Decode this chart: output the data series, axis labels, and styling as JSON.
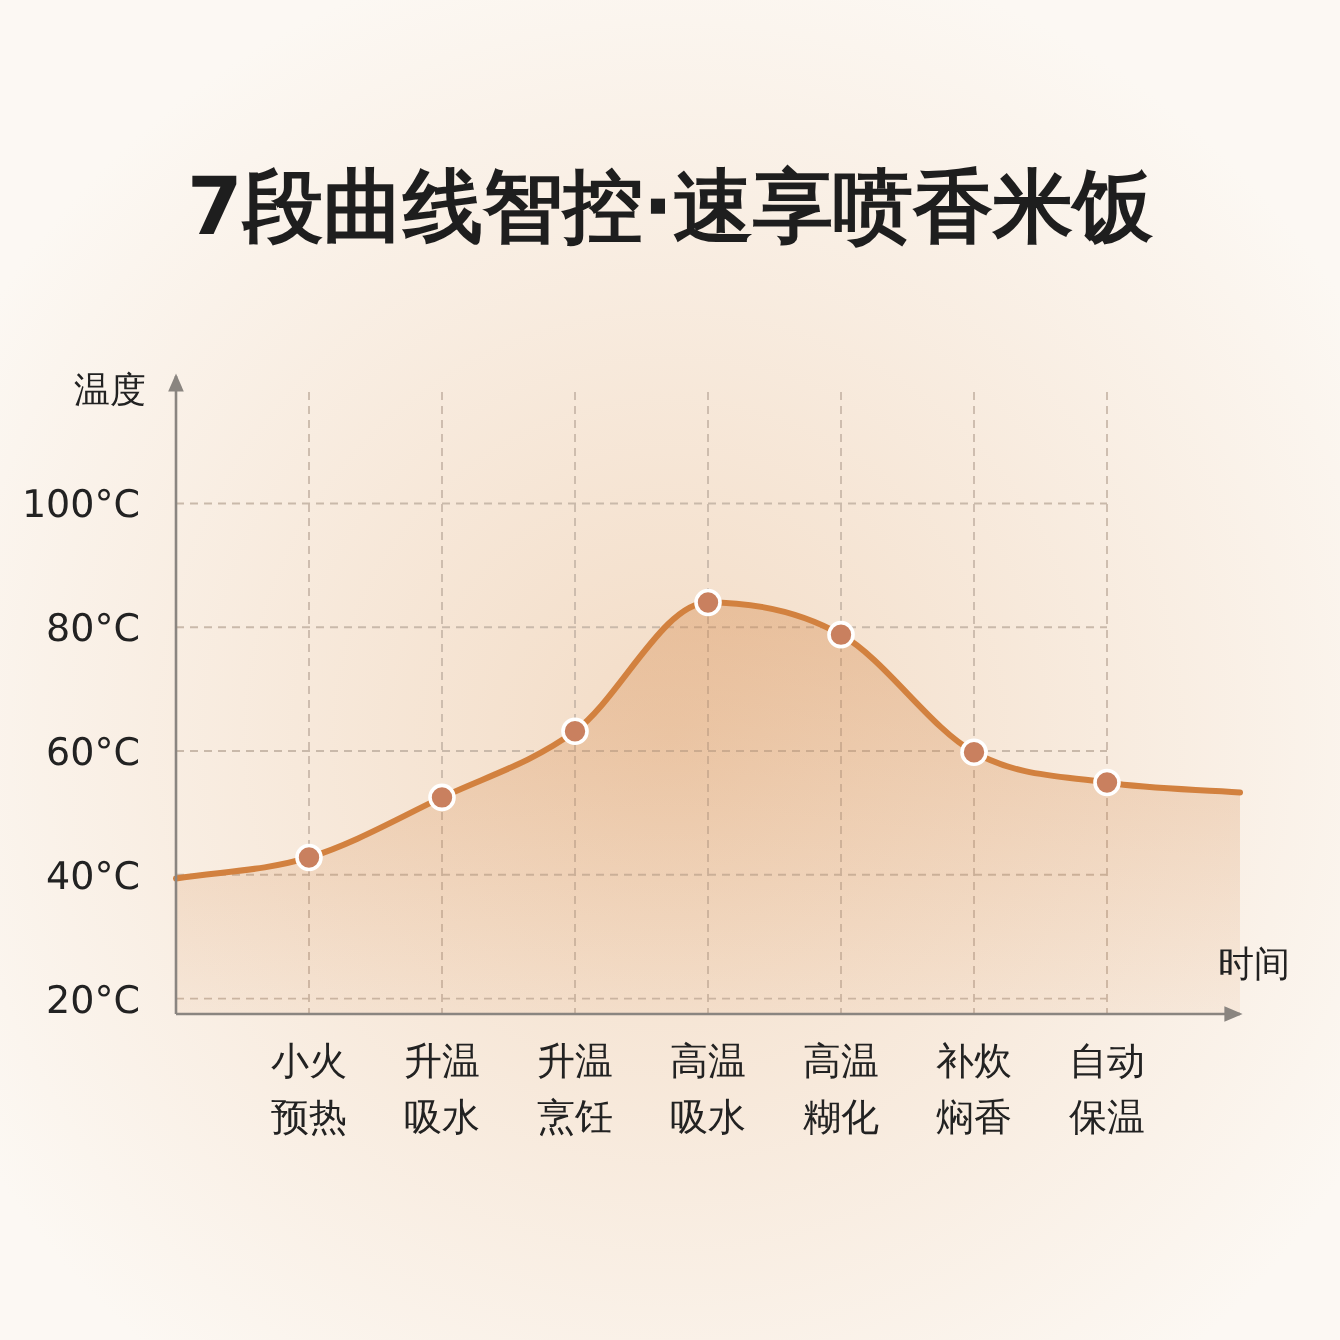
{
  "chart_data": {
    "type": "area",
    "title": "7段曲线智控·速享喷香米饭",
    "xlabel": "时间",
    "ylabel": "温度",
    "ylim": [
      17.5,
      120.6
    ],
    "categories": [
      null,
      "小火预热",
      "升温吸水",
      "升温烹饪",
      "高温吸水",
      "高温糊化",
      "补炊焖香",
      "自动保温",
      null
    ],
    "yticks": [
      {
        "value": 20,
        "label": "20°C"
      },
      {
        "value": 40,
        "label": "40°C"
      },
      {
        "value": 60,
        "label": "60°C"
      },
      {
        "value": 80,
        "label": "80°C"
      },
      {
        "value": 100,
        "label": "100°C"
      }
    ],
    "grid": true,
    "series": [
      {
        "color": "#d2813f",
        "values": [
          39.4,
          42.8,
          52.5,
          63.2,
          84,
          78.8,
          59.8,
          54.9,
          53.3
        ]
      },
      {
        "type": "scatter",
        "color": "#c9805f",
        "marker": "circle",
        "x": [
          "小火预热",
          "升温吸水",
          "升温烹饪",
          "高温吸水",
          "高温糊化",
          "补炊焖香",
          "自动保温"
        ],
        "values": [
          42.8,
          52.5,
          63.2,
          84,
          78.8,
          59.8,
          54.9
        ]
      }
    ]
  }
}
